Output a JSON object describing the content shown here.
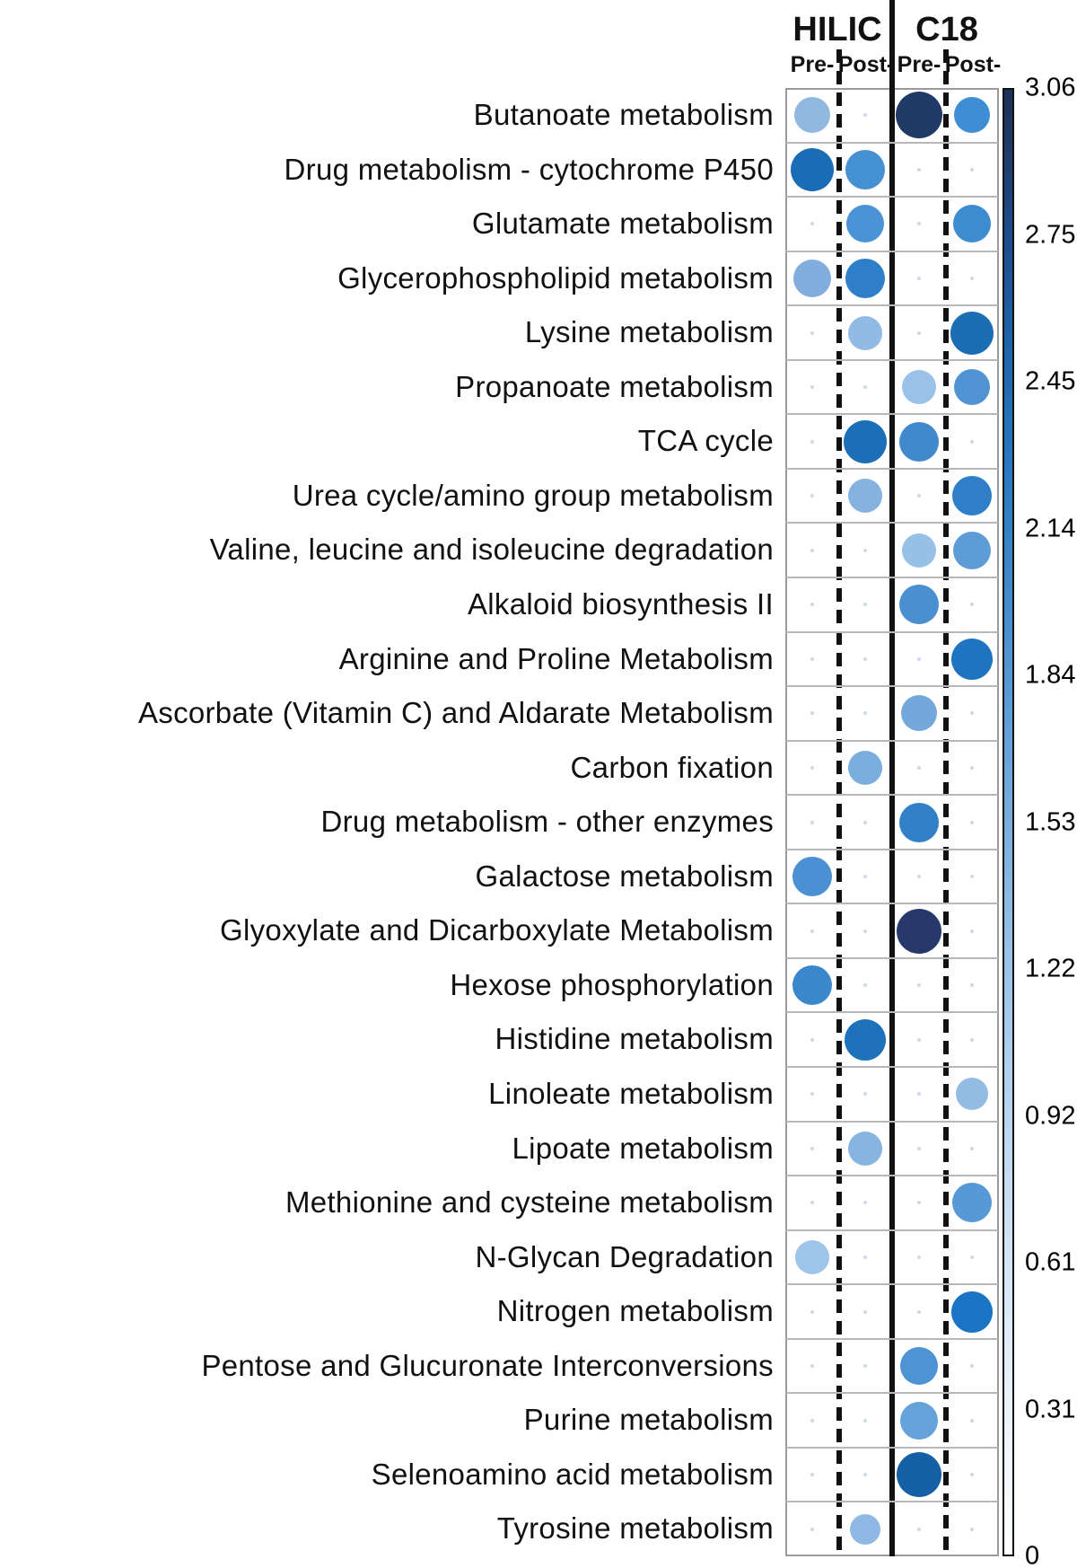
{
  "header": {
    "groups": [
      "HILIC",
      "C18"
    ],
    "sub_labels": [
      "Pre-",
      "Post-",
      "Pre-",
      "Post-"
    ]
  },
  "colorbar": {
    "max_color": "#1d3157",
    "min_color": "#ffffff",
    "empty_marker_color": "#ccd9ea"
  },
  "chart_data": {
    "type": "heatmap",
    "title": "",
    "column_groups": [
      "HILIC",
      "C18"
    ],
    "columns": [
      "HILIC Pre-",
      "HILIC Post-",
      "C18 Pre-",
      "C18 Post-"
    ],
    "scale": {
      "min": 0,
      "max": 3.06,
      "ticks": [
        "3.06",
        "2.75",
        "2.45",
        "2.14",
        "1.84",
        "1.53",
        "1.22",
        "0.92",
        "0.61",
        "0.31",
        "0"
      ]
    },
    "rows": [
      {
        "label": "Butanoate metabolism",
        "cells": [
          {
            "value": 1.4,
            "color": "#92b8e2",
            "diameter": 40
          },
          null,
          {
            "value": 3.0,
            "color": "#203a66",
            "diameter": 52
          },
          {
            "value": 2.1,
            "color": "#3e8ed6",
            "diameter": 40
          }
        ]
      },
      {
        "label": "Drug metabolism - cytochrome P450",
        "cells": [
          {
            "value": 2.5,
            "color": "#1b6cb6",
            "diameter": 48
          },
          {
            "value": 2.0,
            "color": "#4590d0",
            "diameter": 44
          },
          null,
          null
        ]
      },
      {
        "label": "Glutamate metabolism",
        "cells": [
          null,
          {
            "value": 2.0,
            "color": "#4a93d4",
            "diameter": 42
          },
          null,
          {
            "value": 2.1,
            "color": "#3e8cd0",
            "diameter": 42
          }
        ]
      },
      {
        "label": "Glycerophospholipid metabolism",
        "cells": [
          {
            "value": 1.6,
            "color": "#82aede",
            "diameter": 42
          },
          {
            "value": 2.3,
            "color": "#2e7fc8",
            "diameter": 44
          },
          null,
          null
        ]
      },
      {
        "label": "Lysine metabolism",
        "cells": [
          null,
          {
            "value": 1.4,
            "color": "#91bbe4",
            "diameter": 38
          },
          null,
          {
            "value": 2.5,
            "color": "#1b6db4",
            "diameter": 48
          }
        ]
      },
      {
        "label": "Propanoate metabolism",
        "cells": [
          null,
          null,
          {
            "value": 1.3,
            "color": "#9ac1e8",
            "diameter": 38
          },
          {
            "value": 2.0,
            "color": "#4f93d2",
            "diameter": 40
          }
        ]
      },
      {
        "label": "TCA cycle",
        "cells": [
          null,
          {
            "value": 2.5,
            "color": "#1a6fb6",
            "diameter": 48
          },
          {
            "value": 2.1,
            "color": "#4089cc",
            "diameter": 44
          },
          null
        ]
      },
      {
        "label": "Urea cycle/amino group metabolism",
        "cells": [
          null,
          {
            "value": 1.5,
            "color": "#85b3e0",
            "diameter": 38
          },
          null,
          {
            "value": 2.2,
            "color": "#2e7fc8",
            "diameter": 44
          }
        ]
      },
      {
        "label": "Valine, leucine and isoleucine degradation",
        "cells": [
          null,
          null,
          {
            "value": 1.3,
            "color": "#97c0e6",
            "diameter": 38
          },
          {
            "value": 1.8,
            "color": "#5e9cd8",
            "diameter": 42
          }
        ]
      },
      {
        "label": "Alkaloid biosynthesis II",
        "cells": [
          null,
          null,
          {
            "value": 2.0,
            "color": "#4a90d0",
            "diameter": 44
          },
          null
        ]
      },
      {
        "label": "Arginine and Proline Metabolism",
        "cells": [
          null,
          null,
          null,
          {
            "value": 2.4,
            "color": "#1e74c0",
            "diameter": 46
          }
        ]
      },
      {
        "label": "Ascorbate (Vitamin C) and Aldarate Metabolism",
        "cells": [
          null,
          null,
          {
            "value": 1.7,
            "color": "#74a8dc",
            "diameter": 40
          },
          null
        ]
      },
      {
        "label": "Carbon fixation",
        "cells": [
          null,
          {
            "value": 1.6,
            "color": "#7badde",
            "diameter": 38
          },
          null,
          null
        ]
      },
      {
        "label": "Drug metabolism - other enzymes",
        "cells": [
          null,
          null,
          {
            "value": 2.2,
            "color": "#3181c8",
            "diameter": 44
          },
          null
        ]
      },
      {
        "label": "Galactose metabolism",
        "cells": [
          {
            "value": 2.0,
            "color": "#4a90d2",
            "diameter": 44
          },
          null,
          null,
          null
        ]
      },
      {
        "label": "Glyoxylate and Dicarboxylate Metabolism",
        "cells": [
          null,
          null,
          {
            "value": 3.06,
            "color": "#27386b",
            "diameter": 50
          },
          null
        ]
      },
      {
        "label": "Hexose phosphorylation",
        "cells": [
          {
            "value": 2.1,
            "color": "#3b87cc",
            "diameter": 44
          },
          null,
          null,
          null
        ]
      },
      {
        "label": "Histidine metabolism",
        "cells": [
          null,
          {
            "value": 2.4,
            "color": "#1e72ba",
            "diameter": 46
          },
          null,
          null
        ]
      },
      {
        "label": "Linoleate metabolism",
        "cells": [
          null,
          null,
          null,
          {
            "value": 1.2,
            "color": "#93bce4",
            "diameter": 36
          }
        ]
      },
      {
        "label": "Lipoate metabolism",
        "cells": [
          null,
          {
            "value": 1.5,
            "color": "#88b4e0",
            "diameter": 38
          },
          null,
          null
        ]
      },
      {
        "label": "Methionine and cysteine metabolism",
        "cells": [
          null,
          null,
          null,
          {
            "value": 1.9,
            "color": "#5699d6",
            "diameter": 44
          }
        ]
      },
      {
        "label": "N-Glycan Degradation",
        "cells": [
          {
            "value": 1.3,
            "color": "#9ec4ea",
            "diameter": 38
          },
          null,
          null,
          null
        ]
      },
      {
        "label": "Nitrogen metabolism",
        "cells": [
          null,
          null,
          null,
          {
            "value": 2.4,
            "color": "#1a73c4",
            "diameter": 46
          }
        ]
      },
      {
        "label": "Pentose and Glucuronate Interconversions",
        "cells": [
          null,
          null,
          {
            "value": 2.0,
            "color": "#4e94d4",
            "diameter": 42
          },
          null
        ]
      },
      {
        "label": "Purine metabolism",
        "cells": [
          null,
          null,
          {
            "value": 1.8,
            "color": "#66a2da",
            "diameter": 42
          },
          null
        ]
      },
      {
        "label": "Selenoamino acid metabolism",
        "cells": [
          null,
          null,
          {
            "value": 2.7,
            "color": "#1560a4",
            "diameter": 50
          },
          null
        ]
      },
      {
        "label": "Tyrosine metabolism",
        "cells": [
          null,
          {
            "value": 1.4,
            "color": "#8fb9e4",
            "diameter": 34
          },
          null,
          null
        ]
      }
    ]
  }
}
